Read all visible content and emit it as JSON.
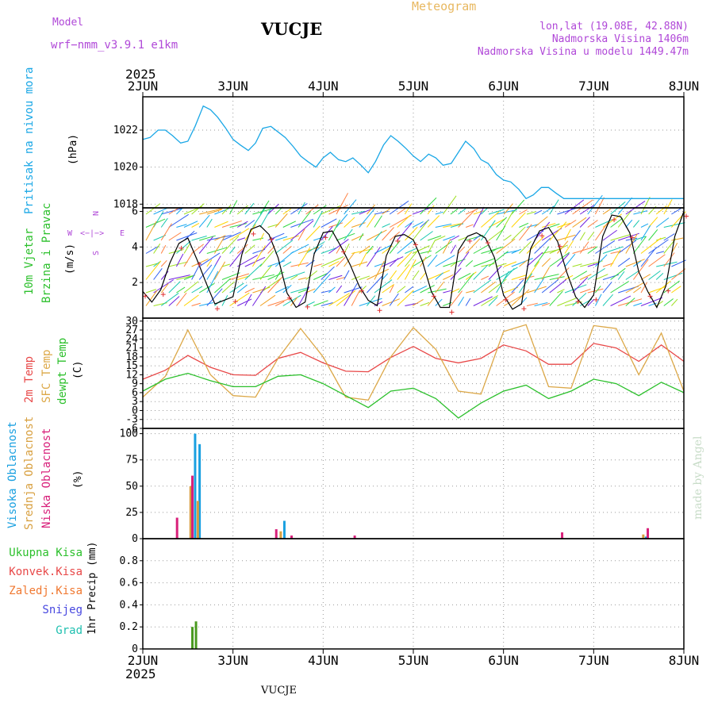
{
  "header": {
    "model_label": "Model",
    "model_name": "wrf−nmm_v3.9.1  e1km",
    "station": "VUCJE",
    "product": "Meteogram",
    "lonlat": "lon,lat (19.08E, 42.88N)",
    "altitude": "Nadmorska Visina 1406m",
    "model_altitude": "Nadmorska Visina u modelu 1449.47m",
    "year": "2025",
    "footer_station": "VUCJE",
    "credit": "made by Angel"
  },
  "x_axis": {
    "labels": [
      "2JUN",
      "3JUN",
      "4JUN",
      "5JUN",
      "6JUN",
      "7JUN",
      "8JUN"
    ],
    "year": "2025"
  },
  "colors": {
    "pressure": "#1aa7e6",
    "t2m": "#e84848",
    "tsfc": "#dca848",
    "dewpt": "#2cc02c",
    "high": "#1aa0e0",
    "mid": "#d8a040",
    "low": "#d8207a",
    "total_precip": "#4a9a20",
    "wind_speed": "#000000",
    "wind_symbol": "#e03030"
  },
  "panels": {
    "pressure": {
      "label": "Pritisak na nivou mora",
      "unit": "(hPa)"
    },
    "wind": {
      "label1": "10m Vjetar",
      "label2": "Brzina i Pravac",
      "unit": "(m/s)",
      "compass_n": "N",
      "compass_w": "W",
      "compass_e": "E",
      "compass_s": "S",
      "compass_arrows": "<−|−>"
    },
    "temp": {
      "label1": "2m Temp",
      "label2": "SFC Temp",
      "label3": "dewpt Temp",
      "unit": "(C)"
    },
    "cloud": {
      "label1": "Visoka Oblacnost",
      "label2": "Srednja Oblacnost",
      "label3": "Niska Oblacnost",
      "unit": "(%)"
    },
    "precip": {
      "labels": [
        "Ukupna Kisa",
        "Konvek.Kisa",
        "Zaledj.Kisa",
        "Snijeg",
        "Grad"
      ],
      "unit": "1hr Precip (mm)"
    }
  },
  "chart_data": [
    {
      "type": "line",
      "name": "pressure",
      "ylim": [
        1017.8,
        1023.8
      ],
      "y_ticks": [
        "1018",
        "1020",
        "1022"
      ],
      "x_days": [
        0,
        0.08,
        0.17,
        0.25,
        0.33,
        0.42,
        0.5,
        0.58,
        0.67,
        0.75,
        0.83,
        0.92,
        1.0,
        1.08,
        1.17,
        1.25,
        1.33,
        1.42,
        1.5,
        1.58,
        1.67,
        1.75,
        1.83,
        1.92,
        2.0,
        2.08,
        2.17,
        2.25,
        2.33,
        2.42,
        2.5,
        2.58,
        2.67,
        2.75,
        2.83,
        2.92,
        3.0,
        3.08,
        3.17,
        3.25,
        3.33,
        3.42,
        3.5,
        3.58,
        3.67,
        3.75,
        3.83,
        3.92,
        4.0,
        4.08,
        4.17,
        4.25,
        4.33,
        4.42,
        4.5,
        4.58,
        4.67,
        4.75,
        4.83,
        4.92,
        5.0,
        5.08,
        5.17,
        5.25,
        5.33,
        5.42,
        5.5,
        5.58,
        5.67,
        5.75,
        5.83,
        5.92,
        6.0
      ],
      "values": [
        1021.5,
        1021.6,
        1022.0,
        1022.0,
        1021.7,
        1021.3,
        1021.4,
        1022.2,
        1023.3,
        1023.1,
        1022.7,
        1022.1,
        1021.5,
        1021.2,
        1020.9,
        1021.3,
        1022.1,
        1022.2,
        1021.9,
        1021.6,
        1021.1,
        1020.6,
        1020.3,
        1020.0,
        1020.5,
        1020.8,
        1020.4,
        1020.3,
        1020.5,
        1020.1,
        1019.7,
        1020.3,
        1021.2,
        1021.7,
        1021.4,
        1021.0,
        1020.6,
        1020.3,
        1020.7,
        1020.5,
        1020.1,
        1020.2,
        1020.8,
        1021.4,
        1021.0,
        1020.4,
        1020.2,
        1019.6,
        1019.3,
        1019.2,
        1018.8,
        1018.3,
        1018.5,
        1018.9,
        1018.9,
        1018.6,
        1018.3,
        1018.3,
        1018.3,
        1018.3,
        1018.3,
        1018.3,
        1018.3,
        1018.3,
        1018.3,
        1018.3,
        1018.3,
        1018.3,
        1018.3,
        1018.3,
        1018.3,
        1018.3,
        1018.3
      ]
    },
    {
      "type": "line",
      "name": "wind_speed",
      "ylim": [
        0,
        6.2
      ],
      "y_ticks": [
        "2",
        "4",
        "6"
      ],
      "x_days": [
        0,
        0.1,
        0.2,
        0.3,
        0.4,
        0.5,
        0.6,
        0.7,
        0.8,
        0.9,
        1.0,
        1.1,
        1.2,
        1.3,
        1.4,
        1.5,
        1.6,
        1.7,
        1.8,
        1.9,
        2.0,
        2.1,
        2.2,
        2.3,
        2.4,
        2.5,
        2.6,
        2.7,
        2.8,
        2.9,
        3.0,
        3.1,
        3.2,
        3.3,
        3.4,
        3.5,
        3.6,
        3.7,
        3.8,
        3.9,
        4.0,
        4.1,
        4.2,
        4.3,
        4.4,
        4.5,
        4.6,
        4.7,
        4.8,
        4.9,
        5.0,
        5.1,
        5.2,
        5.3,
        5.4,
        5.5,
        5.6,
        5.7,
        5.8,
        5.9,
        6.0
      ],
      "values": [
        1.5,
        0.9,
        1.6,
        3.1,
        4.2,
        4.5,
        3.3,
        2.0,
        0.8,
        1.0,
        1.2,
        3.6,
        5.0,
        5.2,
        4.7,
        3.4,
        1.4,
        0.6,
        0.9,
        3.6,
        4.8,
        4.9,
        4.0,
        3.0,
        1.8,
        1.0,
        0.7,
        3.5,
        4.6,
        4.7,
        4.4,
        3.2,
        1.5,
        0.6,
        0.6,
        3.8,
        4.6,
        4.8,
        4.5,
        3.4,
        1.3,
        0.5,
        0.8,
        3.9,
        4.9,
        5.1,
        4.3,
        2.6,
        1.2,
        0.6,
        1.3,
        4.6,
        5.8,
        5.7,
        4.8,
        2.6,
        1.5,
        0.6,
        1.8,
        4.6,
        6.0
      ]
    },
    {
      "type": "line",
      "name": "temperature",
      "ylim": [
        -6,
        31
      ],
      "y_ticks": [
        "-6",
        "-3",
        "0",
        "3",
        "6",
        "9",
        "12",
        "15",
        "18",
        "21",
        "24",
        "27",
        "30"
      ],
      "x_days": [
        0,
        0.25,
        0.5,
        0.75,
        1.0,
        1.25,
        1.5,
        1.75,
        2.0,
        2.25,
        2.5,
        2.75,
        3.0,
        3.25,
        3.5,
        3.75,
        4.0,
        4.25,
        4.5,
        4.75,
        5.0,
        5.25,
        5.5,
        5.75,
        6.0
      ],
      "series": [
        {
          "name": "2m Temp",
          "values": [
            10.5,
            13.5,
            18.5,
            14.5,
            12.0,
            11.8,
            17.5,
            19.5,
            16.0,
            13.2,
            13.0,
            17.8,
            21.5,
            17.5,
            16.0,
            17.5,
            22.0,
            20.0,
            15.5,
            15.5,
            22.5,
            21.0,
            16.5,
            22.0,
            16.5
          ]
        },
        {
          "name": "SFC Temp",
          "values": [
            4.5,
            11.5,
            27.0,
            12.0,
            5.0,
            4.5,
            17.5,
            27.5,
            18.0,
            4.5,
            3.5,
            18.0,
            27.8,
            20.5,
            6.5,
            5.5,
            26.5,
            28.8,
            8.0,
            7.5,
            28.5,
            27.5,
            12.0,
            26.0,
            6.5
          ]
        },
        {
          "name": "dewpt Temp",
          "values": [
            6.5,
            10.5,
            12.5,
            10.0,
            8.0,
            8.0,
            11.5,
            12.0,
            9.0,
            5.0,
            1.0,
            6.5,
            7.5,
            4.0,
            -2.5,
            2.5,
            6.5,
            8.5,
            4.0,
            6.5,
            10.5,
            9.0,
            5.0,
            9.5,
            6.0
          ]
        }
      ]
    },
    {
      "type": "bar",
      "name": "cloudiness",
      "ylim": [
        0,
        105
      ],
      "y_ticks": [
        "0",
        "25",
        "50",
        "75",
        "100"
      ],
      "series": [
        {
          "name": "Visoka Oblacnost",
          "x_days": [
            0.58,
            0.63,
            1.57,
            5.58
          ],
          "values": [
            100,
            90,
            17,
            2
          ]
        },
        {
          "name": "Srednja Oblacnost",
          "x_days": [
            0.53,
            0.61,
            1.53,
            5.55
          ],
          "values": [
            50,
            36,
            7,
            4
          ]
        },
        {
          "name": "Niska Oblacnost",
          "x_days": [
            0.38,
            0.55,
            1.48,
            1.65,
            2.35,
            4.65,
            5.6
          ],
          "values": [
            20,
            60,
            9,
            3,
            3,
            6,
            10
          ]
        }
      ]
    },
    {
      "type": "bar",
      "name": "precipitation",
      "ylim": [
        0,
        1.0
      ],
      "y_ticks": [
        "0",
        "0.2",
        "0.4",
        "0.6",
        "0.8"
      ],
      "series": [
        {
          "name": "Ukupna Kisa",
          "x_days": [
            0.55,
            0.59
          ],
          "values": [
            0.2,
            0.25
          ]
        }
      ]
    }
  ]
}
